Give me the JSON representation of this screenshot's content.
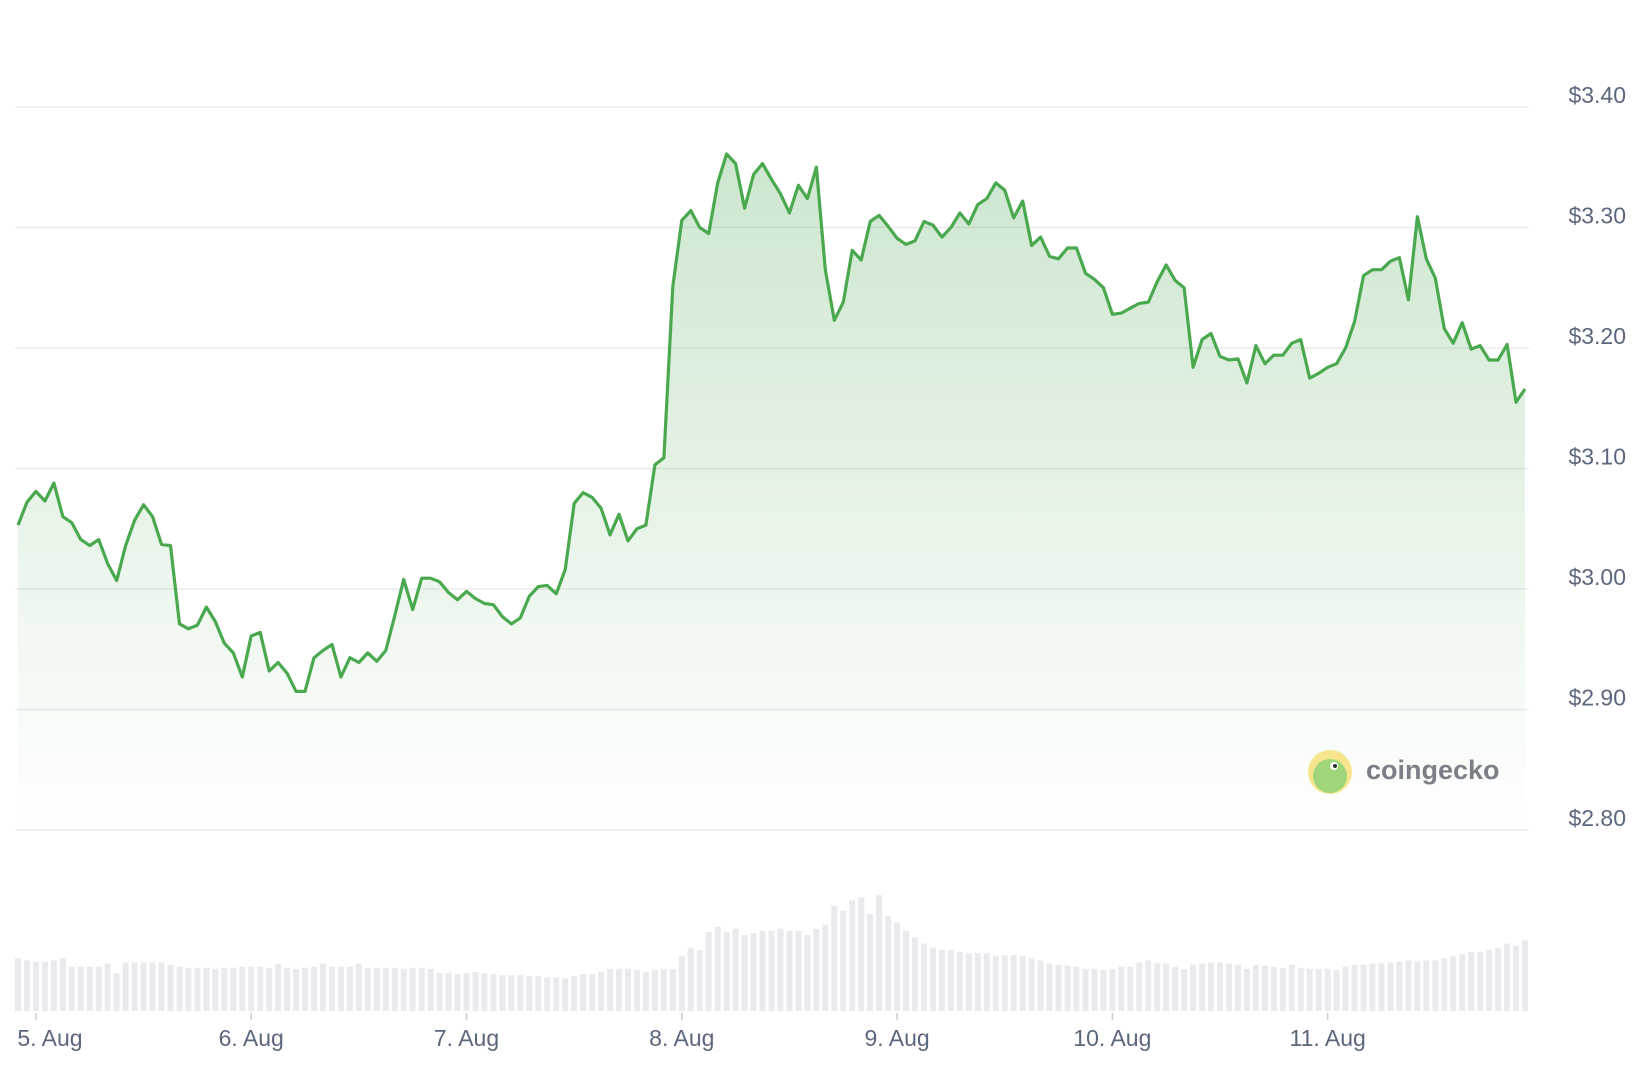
{
  "chart_data": {
    "type": "line",
    "color": "#4aa84f",
    "volume_color": "#e9e9ee",
    "grid": true,
    "watermark": "coingecko",
    "ylim": [
      2.8,
      3.4
    ],
    "yticks": [
      {
        "value": 2.8,
        "label": "$2.80"
      },
      {
        "value": 2.9,
        "label": "$2.90"
      },
      {
        "value": 3.0,
        "label": "$3.00"
      },
      {
        "value": 3.1,
        "label": "$3.10"
      },
      {
        "value": 3.2,
        "label": "$3.20"
      },
      {
        "value": 3.3,
        "label": "$3.30"
      },
      {
        "value": 3.4,
        "label": "$3.40"
      }
    ],
    "categories": [
      null,
      null,
      "5. Aug",
      null,
      null,
      null,
      null,
      null,
      null,
      null,
      null,
      null,
      null,
      null,
      null,
      null,
      null,
      null,
      null,
      null,
      null,
      null,
      null,
      null,
      null,
      null,
      "6. Aug",
      null,
      null,
      null,
      null,
      null,
      null,
      null,
      null,
      null,
      null,
      null,
      null,
      null,
      null,
      null,
      null,
      null,
      null,
      null,
      null,
      null,
      null,
      null,
      "7. Aug",
      null,
      null,
      null,
      null,
      null,
      null,
      null,
      null,
      null,
      null,
      null,
      null,
      null,
      null,
      null,
      null,
      null,
      null,
      null,
      null,
      null,
      null,
      null,
      "8. Aug",
      null,
      null,
      null,
      null,
      null,
      null,
      null,
      null,
      null,
      null,
      null,
      null,
      null,
      null,
      null,
      null,
      null,
      null,
      null,
      null,
      null,
      null,
      null,
      "9. Aug",
      null,
      null,
      null,
      null,
      null,
      null,
      null,
      null,
      null,
      null,
      null,
      null,
      null,
      null,
      null,
      null,
      null,
      null,
      null,
      null,
      null,
      null,
      null,
      "10. Aug",
      null,
      null,
      null,
      null,
      null,
      null,
      null,
      null,
      null,
      null,
      null,
      null,
      null,
      null,
      null,
      null,
      null,
      null,
      null,
      null,
      null,
      null,
      null,
      "11. Aug",
      null,
      null,
      null,
      null,
      null,
      null,
      null,
      null,
      null,
      null,
      null,
      null,
      null,
      null,
      null,
      null,
      null,
      null,
      null,
      null,
      null,
      null
    ],
    "values": [
      3.053,
      3.072,
      3.081,
      3.073,
      3.088,
      3.06,
      3.055,
      3.041,
      3.036,
      3.041,
      3.021,
      3.007,
      3.036,
      3.057,
      3.07,
      3.06,
      3.037,
      3.036,
      2.971,
      2.967,
      2.97,
      2.985,
      2.973,
      2.955,
      2.947,
      2.927,
      2.961,
      2.964,
      2.932,
      2.939,
      2.93,
      2.915,
      2.915,
      2.943,
      2.949,
      2.954,
      2.927,
      2.943,
      2.939,
      2.947,
      2.94,
      2.949,
      2.978,
      3.008,
      2.983,
      3.009,
      3.009,
      3.006,
      2.997,
      2.991,
      2.998,
      2.992,
      2.988,
      2.987,
      2.977,
      2.971,
      2.976,
      2.994,
      3.002,
      3.003,
      2.996,
      3.016,
      3.071,
      3.08,
      3.076,
      3.067,
      3.045,
      3.062,
      3.04,
      3.05,
      3.053,
      3.103,
      3.109,
      3.251,
      3.306,
      3.314,
      3.3,
      3.295,
      3.337,
      3.361,
      3.353,
      3.316,
      3.344,
      3.353,
      3.34,
      3.328,
      3.312,
      3.335,
      3.324,
      3.35,
      3.265,
      3.223,
      3.238,
      3.281,
      3.273,
      3.305,
      3.31,
      3.301,
      3.291,
      3.286,
      3.289,
      3.305,
      3.302,
      3.292,
      3.3,
      3.312,
      3.303,
      3.319,
      3.324,
      3.337,
      3.331,
      3.308,
      3.322,
      3.285,
      3.292,
      3.276,
      3.274,
      3.283,
      3.283,
      3.262,
      3.257,
      3.25,
      3.228,
      3.229,
      3.233,
      3.237,
      3.238,
      3.255,
      3.269,
      3.256,
      3.25,
      3.184,
      3.207,
      3.212,
      3.193,
      3.19,
      3.191,
      3.171,
      3.202,
      3.187,
      3.194,
      3.194,
      3.204,
      3.207,
      3.175,
      3.179,
      3.184,
      3.187,
      3.2,
      3.222,
      3.26,
      3.265,
      3.265,
      3.272,
      3.275,
      3.24,
      3.309,
      3.274,
      3.258,
      3.216,
      3.204,
      3.221,
      3.199,
      3.202,
      3.19,
      3.19,
      3.203,
      3.155,
      3.166
    ],
    "volumes": [
      50,
      48,
      47,
      47,
      48,
      50,
      42,
      42,
      42,
      42,
      45,
      36,
      46,
      46,
      46,
      46,
      46,
      44,
      42,
      41,
      41,
      41,
      40,
      41,
      41,
      42,
      42,
      42,
      41,
      45,
      41,
      40,
      41,
      42,
      45,
      42,
      42,
      42,
      45,
      41,
      41,
      41,
      41,
      40,
      41,
      41,
      40,
      36,
      36,
      35,
      36,
      37,
      36,
      35,
      34,
      34,
      34,
      33,
      33,
      32,
      32,
      31,
      33,
      35,
      35,
      37,
      40,
      40,
      40,
      39,
      37,
      39,
      40,
      40,
      52,
      60,
      58,
      75,
      80,
      75,
      78,
      72,
      74,
      76,
      76,
      78,
      76,
      76,
      72,
      78,
      82,
      100,
      95,
      105,
      108,
      92,
      110,
      90,
      84,
      76,
      70,
      64,
      60,
      58,
      58,
      56,
      55,
      55,
      55,
      52,
      53,
      53,
      52,
      50,
      48,
      45,
      44,
      43,
      42,
      40,
      40,
      39,
      40,
      42,
      42,
      46,
      48,
      45,
      45,
      42,
      40,
      44,
      45,
      46,
      46,
      45,
      44,
      40,
      44,
      43,
      42,
      41,
      44,
      41,
      40,
      40,
      40,
      39,
      42,
      44,
      44,
      45,
      45,
      46,
      47,
      48,
      47,
      48,
      48,
      50,
      52,
      54,
      56,
      56,
      58,
      60,
      64,
      62,
      67
    ]
  }
}
